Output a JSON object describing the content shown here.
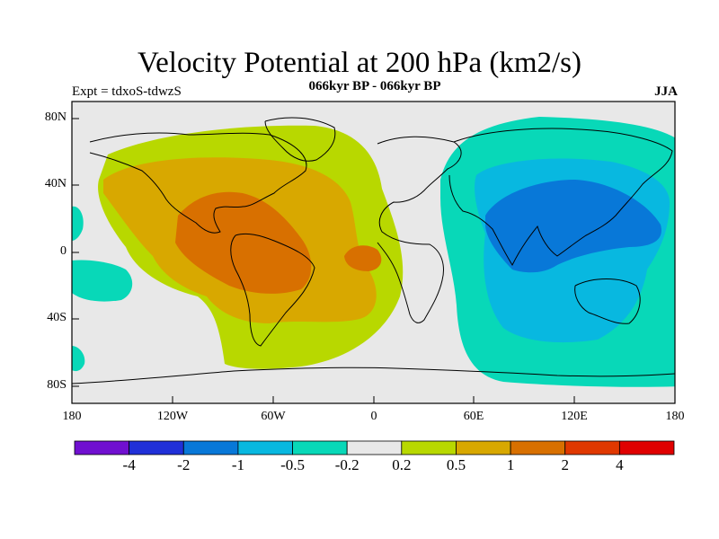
{
  "title": "Velocity Potential at 200 hPa (km2/s)",
  "subtitle": "066kyr BP - 066kyr BP",
  "experiment": "Expt = tdxoS-tdwzS",
  "season": "JJA",
  "lat_labels": [
    "80N",
    "40N",
    "0",
    "40S",
    "80S"
  ],
  "lon_labels": [
    "180",
    "120W",
    "60W",
    "0",
    "60E",
    "120E",
    "180"
  ],
  "colorbar": {
    "colors": [
      "#7010d0",
      "#2030d8",
      "#0878d8",
      "#08b8e0",
      "#08d8b8",
      "#e8e8e8",
      "#b8d800",
      "#d8a800",
      "#d87000",
      "#e03800",
      "#e00000"
    ],
    "labels": [
      "-4",
      "-2",
      "-1",
      "-0.5",
      "-0.2",
      "0.2",
      "0.5",
      "1",
      "2",
      "4"
    ]
  },
  "colors": {
    "neutral": "#e8e8e8",
    "pos_low": "#b8d800",
    "pos_mid": "#d8a800",
    "pos_high": "#d87000",
    "neg_low": "#08d8b8",
    "neg_mid": "#08b8e0",
    "neg_high": "#0878d8",
    "coast": "#000000"
  }
}
